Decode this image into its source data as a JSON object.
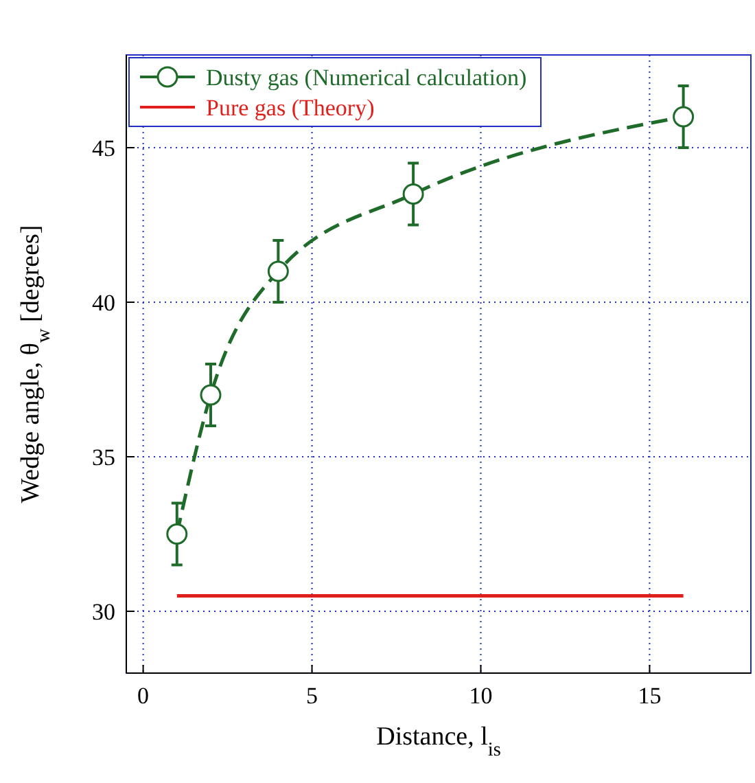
{
  "chart_data": {
    "type": "line",
    "xlabel": "Distance, l$_{is}$",
    "ylabel": "Wedge angle, θ$_{w}$ [degrees]",
    "xlim": [
      -0.5,
      18
    ],
    "ylim": [
      28,
      48
    ],
    "xticks": [
      0,
      5,
      10,
      15
    ],
    "yticks": [
      30,
      35,
      40,
      45
    ],
    "grid": true,
    "legend": "top left",
    "series": [
      {
        "name": "Dusty gas (Numerical calculation)",
        "color": "#1e6b2a",
        "x": [
          1,
          2,
          4,
          8,
          16
        ],
        "values": [
          32.5,
          37,
          41,
          43.5,
          46
        ],
        "errors": [
          1,
          1,
          1,
          1,
          1
        ],
        "marker": "circle",
        "line_style": "dashed"
      },
      {
        "name": "Pure gas (Theory)",
        "color": "#e0201c",
        "x": [
          1,
          16
        ],
        "values": [
          30.5,
          30.5
        ],
        "marker": "none",
        "line_style": "solid"
      }
    ]
  }
}
